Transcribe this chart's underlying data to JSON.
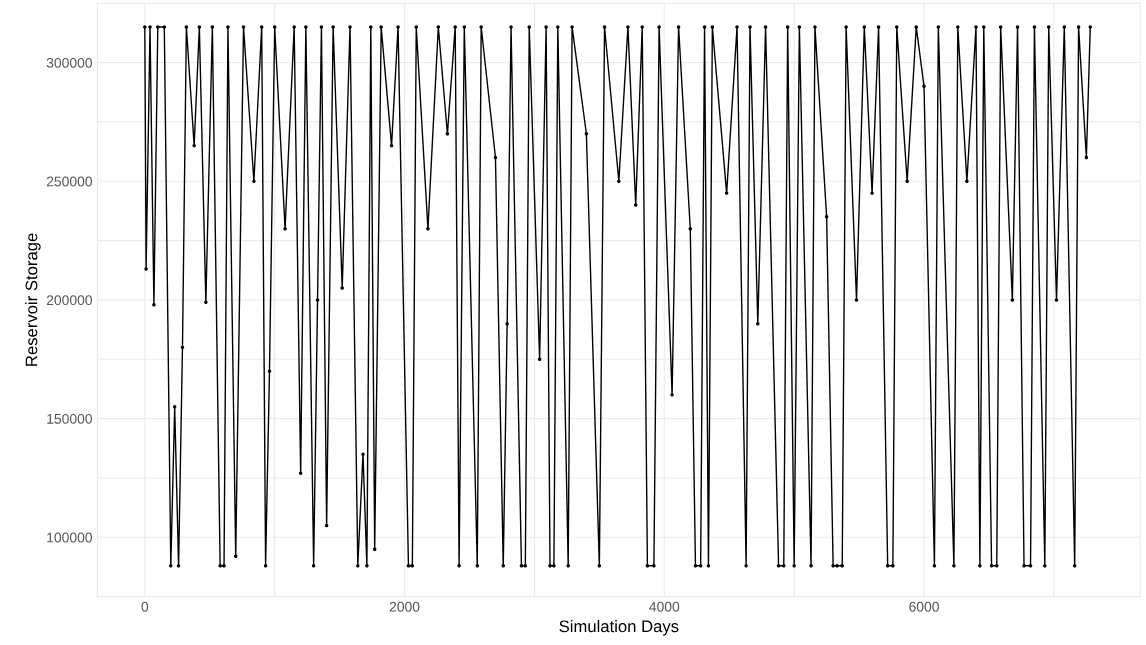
{
  "chart_data": {
    "type": "line",
    "xlabel": "Simulation Days",
    "ylabel": "Reservoir Storage",
    "xlim": [
      -365,
      7665
    ],
    "ylim": [
      75000,
      325000
    ],
    "xticks": [
      0,
      {
        "value": 1000,
        "label": null
      },
      2000,
      {
        "value": 3000,
        "label": null
      },
      4000,
      {
        "value": 5000,
        "label": null
      },
      6000,
      {
        "value": 7000,
        "label": null
      }
    ],
    "yticks": [
      {
        "value": 75000,
        "label": null
      },
      100000,
      {
        "value": 125000,
        "label": null
      },
      150000,
      {
        "value": 175000,
        "label": null
      },
      200000,
      {
        "value": 225000,
        "label": null
      },
      250000,
      {
        "value": 275000,
        "label": null
      },
      300000,
      {
        "value": 325000,
        "label": null
      }
    ],
    "grid": true,
    "marker": "circle",
    "line_style": "solid",
    "legend": false,
    "series": [
      {
        "color": "#000000",
        "x": [
          0,
          10,
          40,
          70,
          100,
          150,
          200,
          230,
          260,
          290,
          320,
          380,
          420,
          470,
          520,
          580,
          610,
          640,
          700,
          760,
          840,
          900,
          930,
          960,
          1000,
          1080,
          1150,
          1200,
          1240,
          1300,
          1330,
          1360,
          1400,
          1450,
          1520,
          1580,
          1640,
          1680,
          1710,
          1740,
          1770,
          1820,
          1900,
          1950,
          2030,
          2060,
          2090,
          2180,
          2260,
          2330,
          2390,
          2420,
          2460,
          2560,
          2590,
          2700,
          2760,
          2790,
          2820,
          2900,
          2930,
          2960,
          3040,
          3090,
          3120,
          3150,
          3180,
          3260,
          3290,
          3400,
          3500,
          3540,
          3650,
          3720,
          3780,
          3830,
          3870,
          3920,
          3960,
          4060,
          4110,
          4200,
          4240,
          4280,
          4310,
          4340,
          4370,
          4480,
          4560,
          4630,
          4660,
          4720,
          4780,
          4880,
          4920,
          4950,
          5000,
          5040,
          5130,
          5160,
          5250,
          5300,
          5330,
          5370,
          5400,
          5480,
          5540,
          5600,
          5650,
          5720,
          5760,
          5790,
          5870,
          5940,
          6000,
          6080,
          6110,
          6230,
          6260,
          6330,
          6400,
          6430,
          6460,
          6520,
          6560,
          6590,
          6680,
          6720,
          6770,
          6820,
          6850,
          6930,
          6960,
          7020,
          7080,
          7160,
          7190,
          7250,
          7280
        ],
        "values": [
          315000,
          213000,
          315000,
          198000,
          315000,
          315000,
          88000,
          155000,
          88000,
          180000,
          315000,
          265000,
          315000,
          199000,
          315000,
          88000,
          88000,
          315000,
          92000,
          315000,
          250000,
          315000,
          88000,
          170000,
          315000,
          230000,
          315000,
          127000,
          315000,
          88000,
          200000,
          315000,
          105000,
          315000,
          205000,
          315000,
          88000,
          135000,
          88000,
          315000,
          95000,
          315000,
          265000,
          315000,
          88000,
          88000,
          315000,
          230000,
          315000,
          270000,
          315000,
          88000,
          315000,
          88000,
          315000,
          260000,
          88000,
          190000,
          315000,
          88000,
          88000,
          315000,
          175000,
          315000,
          88000,
          88000,
          315000,
          88000,
          315000,
          270000,
          88000,
          315000,
          250000,
          315000,
          240000,
          315000,
          88000,
          88000,
          315000,
          160000,
          315000,
          230000,
          88000,
          88000,
          315000,
          88000,
          315000,
          245000,
          315000,
          88000,
          315000,
          190000,
          315000,
          88000,
          88000,
          315000,
          88000,
          315000,
          88000,
          315000,
          235000,
          88000,
          88000,
          88000,
          315000,
          200000,
          315000,
          245000,
          315000,
          88000,
          88000,
          315000,
          250000,
          315000,
          290000,
          88000,
          315000,
          88000,
          315000,
          250000,
          315000,
          88000,
          315000,
          88000,
          88000,
          315000,
          200000,
          315000,
          88000,
          88000,
          315000,
          88000,
          315000,
          200000,
          315000,
          88000,
          315000,
          260000,
          315000
        ]
      }
    ]
  }
}
